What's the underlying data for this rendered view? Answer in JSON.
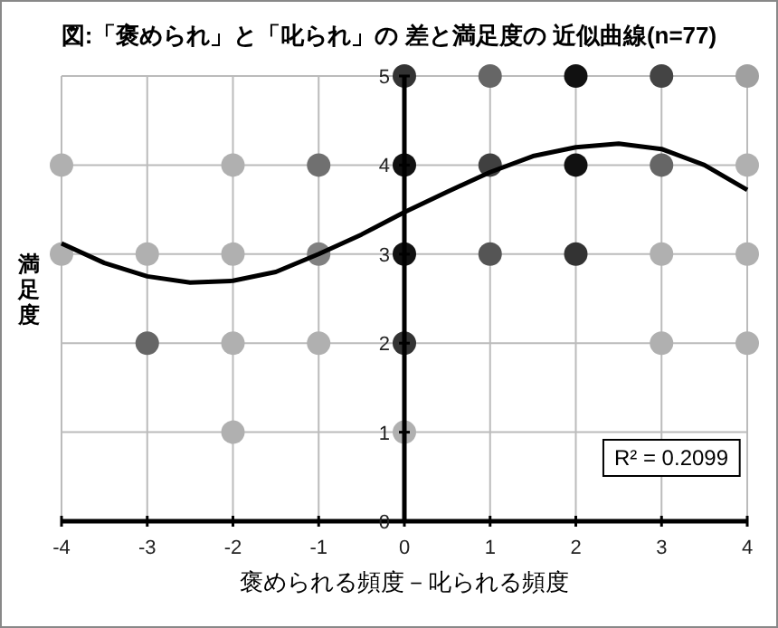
{
  "chart_data": {
    "type": "scatter",
    "title": "図:「褒められ」と「叱られ」の 差と満足度の 近似曲線(n=77)",
    "xlabel": "褒められる頻度－叱られる頻度",
    "ylabel": "満足度",
    "xlim": [
      -4,
      4
    ],
    "xticks": [
      -4,
      -3,
      -2,
      -1,
      0,
      1,
      2,
      3,
      4
    ],
    "ylim": [
      0,
      5
    ],
    "yticks": [
      0,
      1,
      2,
      3,
      4,
      5
    ],
    "grid": true,
    "marker": "circle",
    "series": [
      {
        "x": [
          -4,
          -4,
          -3,
          -3,
          -2,
          -2,
          -2,
          -2,
          -1,
          -1,
          -1,
          0,
          0,
          0,
          0,
          0,
          1,
          1,
          1,
          2,
          2,
          2,
          3,
          3,
          3,
          3,
          4,
          4,
          4,
          4
        ],
        "values": [
          4,
          3,
          3,
          2,
          4,
          3,
          2,
          1,
          4,
          3,
          2,
          5,
          4,
          3,
          2,
          1,
          5,
          4,
          3,
          5,
          4,
          3,
          5,
          4,
          3,
          2,
          5,
          4,
          3,
          2
        ],
        "colors": [
          "#b0b0b0",
          "#b0b0b0",
          "#b0b0b0",
          "#666666",
          "#b0b0b0",
          "#b0b0b0",
          "#b0b0b0",
          "#b0b0b0",
          "#707070",
          "#808080",
          "#b0b0b0",
          "#333333",
          "#111111",
          "#111111",
          "#333333",
          "#b0b0b0",
          "#666666",
          "#404040",
          "#555555",
          "#111111",
          "#111111",
          "#333333",
          "#444444",
          "#666666",
          "#b0b0b0",
          "#b0b0b0",
          "#a0a0a0",
          "#b0b0b0",
          "#b0b0b0",
          "#b0b0b0"
        ]
      },
      {
        "type": "line",
        "color": "#000000",
        "line_style": "solid",
        "marker": "none",
        "x": [
          -4,
          -3.5,
          -3,
          -2.5,
          -2,
          -1.5,
          -1,
          -0.5,
          0,
          0.5,
          1,
          1.5,
          2,
          2.5,
          3,
          3.5,
          4
        ],
        "values": [
          3.12,
          2.9,
          2.75,
          2.68,
          2.7,
          2.8,
          3.0,
          3.22,
          3.47,
          3.7,
          3.92,
          4.1,
          4.2,
          4.24,
          4.18,
          4.0,
          3.72
        ]
      }
    ],
    "annotations": [
      "R² = 0.2099"
    ]
  }
}
